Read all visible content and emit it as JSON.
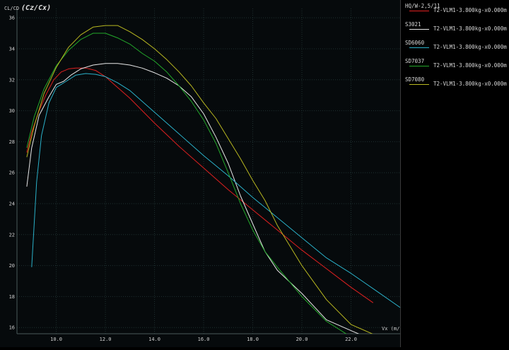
{
  "chart_data": {
    "type": "line",
    "ylabel": "CL/CD",
    "ylabel_extra": "(Cz/Cx)",
    "xlabel": "Vx (m/s)",
    "xlim": [
      8.4,
      24.0
    ],
    "ylim": [
      15.6,
      36.6
    ],
    "xticks": [
      "10.0",
      "12.0",
      "14.0",
      "16.0",
      "18.0",
      "20.0",
      "22.0"
    ],
    "xtick_values": [
      10,
      12,
      14,
      16,
      18,
      20,
      22
    ],
    "yticks": [
      "16",
      "18",
      "20",
      "22",
      "24",
      "26",
      "28",
      "30",
      "32",
      "34",
      "36"
    ],
    "ytick_values": [
      16,
      18,
      20,
      22,
      24,
      26,
      28,
      30,
      32,
      34,
      36
    ],
    "grid": true,
    "legend_position": "right",
    "series": [
      {
        "name": "HQ/W-2,5/11",
        "label": "T2-VLM1-3.800kg-x0.000m",
        "color": "#e02020",
        "x": [
          8.8,
          9.0,
          9.3,
          9.6,
          9.9,
          10.2,
          10.5,
          10.8,
          11.2,
          11.6,
          12.0,
          12.5,
          13.0,
          14.0,
          15.0,
          16.0,
          17.0,
          18.0,
          19.0,
          20.0,
          21.0,
          22.0,
          22.9
        ],
        "y": [
          27.3,
          28.6,
          30.0,
          31.1,
          32.0,
          32.5,
          32.7,
          32.75,
          32.75,
          32.6,
          32.2,
          31.5,
          30.8,
          29.2,
          27.7,
          26.3,
          24.9,
          23.6,
          22.3,
          21.0,
          19.8,
          18.6,
          17.6
        ]
      },
      {
        "name": "S3021",
        "label": "T2-VLM1-3.800kg-x0.000m",
        "color": "#e8e8e8",
        "x": [
          8.8,
          9.0,
          9.3,
          9.7,
          10.0,
          10.3,
          10.6,
          11.0,
          11.5,
          12.0,
          12.5,
          13.0,
          13.5,
          14.0,
          14.5,
          15.0,
          15.5,
          16.0,
          16.5,
          17.0,
          17.5,
          18.0,
          18.5,
          19.0,
          20.0,
          21.0,
          22.0,
          22.9
        ],
        "y": [
          25.1,
          27.6,
          29.7,
          30.9,
          31.7,
          31.9,
          32.3,
          32.7,
          32.95,
          33.05,
          33.05,
          32.95,
          32.75,
          32.45,
          32.1,
          31.6,
          30.9,
          29.8,
          28.3,
          26.6,
          24.5,
          22.7,
          20.9,
          19.7,
          18.2,
          16.5,
          15.8,
          15.2
        ]
      },
      {
        "name": "SD6060",
        "label": "T2-VLM1-3.800kg-x0.000m",
        "color": "#2ab0c8",
        "x": [
          9.0,
          9.2,
          9.4,
          9.7,
          10.0,
          10.4,
          10.8,
          11.2,
          11.6,
          12.0,
          12.5,
          13.0,
          14.0,
          15.0,
          16.0,
          17.0,
          18.0,
          19.0,
          20.0,
          21.0,
          22.0,
          23.0,
          24.0
        ],
        "y": [
          19.9,
          25.4,
          28.4,
          30.5,
          31.5,
          31.9,
          32.3,
          32.4,
          32.35,
          32.2,
          31.8,
          31.3,
          29.9,
          28.5,
          27.1,
          25.8,
          24.4,
          23.1,
          21.8,
          20.5,
          19.5,
          18.4,
          17.3
        ]
      },
      {
        "name": "SD7037",
        "label": "T2-VLM1-3.800kg-x0.000m",
        "color": "#23a82a",
        "x": [
          8.8,
          9.1,
          9.5,
          10.0,
          10.5,
          11.0,
          11.5,
          12.0,
          12.5,
          13.0,
          13.5,
          14.0,
          14.5,
          15.0,
          15.5,
          16.0,
          16.5,
          17.0,
          17.5,
          18.0,
          18.5,
          19.0,
          20.0,
          21.0,
          22.0,
          23.0
        ],
        "y": [
          27.6,
          29.6,
          31.4,
          32.9,
          33.9,
          34.6,
          35.0,
          35.0,
          34.7,
          34.3,
          33.7,
          33.2,
          32.5,
          31.6,
          30.6,
          29.4,
          27.9,
          26.0,
          24.0,
          22.3,
          20.9,
          19.9,
          18.0,
          16.4,
          15.4,
          14.5
        ]
      },
      {
        "name": "SD7080",
        "label": "T2-VLM1-3.800kg-x0.000m",
        "color": "#b8b820",
        "x": [
          8.8,
          9.1,
          9.5,
          10.0,
          10.5,
          11.0,
          11.5,
          12.0,
          12.5,
          13.0,
          13.5,
          14.0,
          14.5,
          15.0,
          15.5,
          16.0,
          16.5,
          17.0,
          17.5,
          18.0,
          18.5,
          19.0,
          20.0,
          21.0,
          22.0,
          23.0,
          23.5
        ],
        "y": [
          27.0,
          29.0,
          31.1,
          32.8,
          34.1,
          34.9,
          35.4,
          35.5,
          35.5,
          35.1,
          34.6,
          34.0,
          33.3,
          32.5,
          31.6,
          30.5,
          29.5,
          28.2,
          26.9,
          25.5,
          24.2,
          22.6,
          20.0,
          17.8,
          16.2,
          15.5,
          15.3
        ]
      }
    ]
  }
}
